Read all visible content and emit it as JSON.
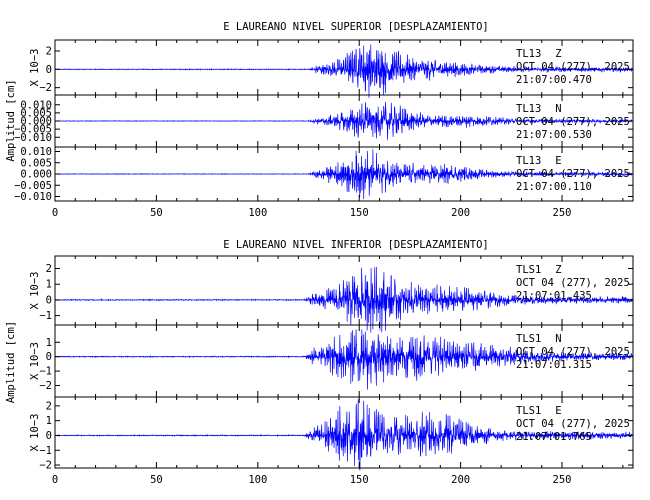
{
  "chart_data": [
    {
      "type": "line",
      "title": "E LAUREANO NIVEL SUPERIOR [DESPLAZAMIENTO]",
      "ylabel": "Amplitud [cm]",
      "xlim": [
        0,
        285
      ],
      "xticks": [
        0,
        50,
        100,
        150,
        200,
        250
      ],
      "trace_color": "#0000ff",
      "panels": [
        {
          "station": "TL13",
          "component": "Z",
          "date": "OCT 04 (277), 2025",
          "time": "21:07:00.470",
          "ylim": [
            -2.8,
            3.2
          ],
          "yticks": [
            -2,
            0,
            2
          ],
          "ytick_labels": [
            "−2",
            "0",
            "2"
          ],
          "scale_label": "X 10−3",
          "envelope": {
            "onset": 125,
            "peaks": [
              {
                "t": 155,
                "a": 2.6,
                "w": 14
              },
              {
                "t": 180,
                "a": 0.9,
                "w": 25
              }
            ],
            "coda": 0.3,
            "noise": 0.05
          }
        },
        {
          "station": "TL13",
          "component": "N",
          "date": "OCT 04 (277), 2025",
          "time": "21:07:00.530",
          "ylim": [
            -0.016,
            0.016
          ],
          "yticks": [
            -0.01,
            -0.005,
            0,
            0.005,
            0.01
          ],
          "ytick_labels": [
            "−0.010",
            "−0.005",
            "0.000",
            "0.005",
            "0.010"
          ],
          "scale_label": "",
          "envelope": {
            "onset": 125,
            "peaks": [
              {
                "t": 150,
                "a": 0.008,
                "w": 12
              },
              {
                "t": 166,
                "a": 0.009,
                "w": 13
              },
              {
                "t": 200,
                "a": 0.003,
                "w": 20
              }
            ],
            "coda": 0.0012,
            "noise": 0.0002
          }
        },
        {
          "station": "TL13",
          "component": "E",
          "date": "OCT 04 (277), 2025",
          "time": "21:07:00.110",
          "ylim": [
            -0.012,
            0.012
          ],
          "yticks": [
            -0.01,
            -0.005,
            0,
            0.005,
            0.01
          ],
          "ytick_labels": [
            "−0.010",
            "−0.005",
            "0.000",
            "0.005",
            "0.010"
          ],
          "scale_label": "",
          "envelope": {
            "onset": 125,
            "peaks": [
              {
                "t": 152,
                "a": 0.0105,
                "w": 14
              },
              {
                "t": 185,
                "a": 0.004,
                "w": 22
              }
            ],
            "coda": 0.0011,
            "noise": 0.00015
          }
        }
      ]
    },
    {
      "type": "line",
      "title": "E LAUREANO NIVEL INFERIOR [DESPLAZAMIENTO]",
      "ylabel": "Amplitud [cm]",
      "xlim": [
        0,
        285
      ],
      "xticks": [
        0,
        50,
        100,
        150,
        200,
        250
      ],
      "trace_color": "#0000ff",
      "panels": [
        {
          "station": "TLS1",
          "component": "Z",
          "date": "OCT 04 (277), 2025",
          "time": "21:07:01.435",
          "ylim": [
            -1.6,
            2.8
          ],
          "yticks": [
            -1,
            0,
            1,
            2
          ],
          "ytick_labels": [
            "−1",
            "0",
            "1",
            "2"
          ],
          "scale_label": "X 10−3",
          "envelope": {
            "onset": 123,
            "peaks": [
              {
                "t": 155,
                "a": 1.9,
                "w": 16
              },
              {
                "t": 190,
                "a": 0.7,
                "w": 25
              }
            ],
            "coda": 0.25,
            "noise": 0.04
          }
        },
        {
          "station": "TLS1",
          "component": "N",
          "date": "OCT 04 (277), 2025",
          "time": "21:07:01.315",
          "ylim": [
            -2.8,
            2.2
          ],
          "yticks": [
            -2,
            -1,
            0,
            1
          ],
          "ytick_labels": [
            "−2",
            "−1",
            "0",
            "1"
          ],
          "scale_label": "X 10−3",
          "envelope": {
            "onset": 123,
            "peaks": [
              {
                "t": 148,
                "a": 1.8,
                "w": 14
              },
              {
                "t": 175,
                "a": 1.4,
                "w": 20
              },
              {
                "t": 210,
                "a": 0.6,
                "w": 25
              }
            ],
            "coda": 0.3,
            "noise": 0.04
          }
        },
        {
          "station": "TLS1",
          "component": "E",
          "date": "OCT 04 (277), 2025",
          "time": "21:07:01.765",
          "ylim": [
            -2.2,
            2.6
          ],
          "yticks": [
            -2,
            -1,
            0,
            1,
            2
          ],
          "ytick_labels": [
            "−2",
            "−1",
            "0",
            "1",
            "2"
          ],
          "scale_label": "X 10−3",
          "envelope": {
            "onset": 123,
            "peaks": [
              {
                "t": 148,
                "a": 2.1,
                "w": 14
              },
              {
                "t": 185,
                "a": 1.3,
                "w": 22
              }
            ],
            "coda": 0.3,
            "noise": 0.04
          }
        }
      ]
    }
  ]
}
